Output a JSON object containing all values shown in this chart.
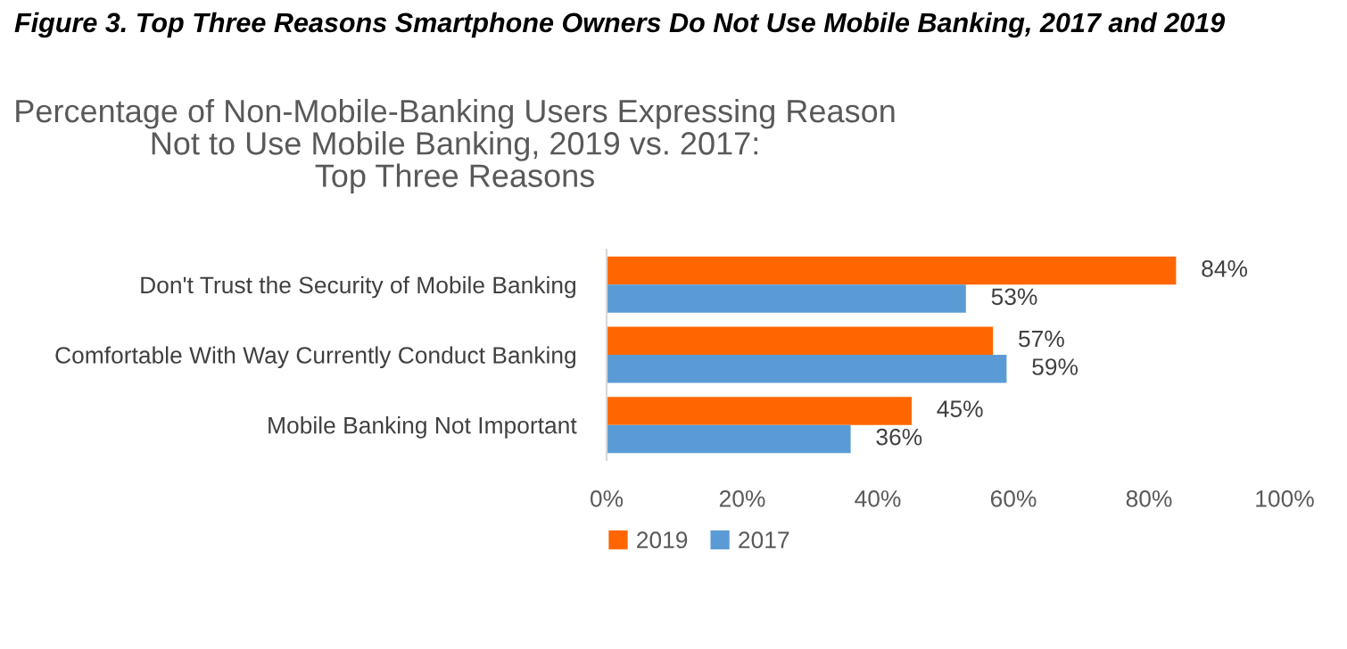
{
  "chart_data": {
    "type": "bar",
    "orientation": "horizontal",
    "title": "Figure 3. Top Three Reasons Smartphone Owners Do Not Use Mobile Banking, 2017 and 2019",
    "subtitle": "Percentage of Non-Mobile-Banking Users Expressing Reason\nNot to Use Mobile Banking, 2019 vs. 2017:\nTop Three Reasons",
    "categories": [
      "Don't Trust the Security of Mobile Banking",
      "Comfortable With Way Currently Conduct Banking",
      "Mobile Banking Not Important"
    ],
    "series": [
      {
        "name": "2019",
        "color": "#ff6600",
        "values": [
          84,
          57,
          45
        ],
        "value_labels": [
          "84%",
          "57%",
          "45%"
        ]
      },
      {
        "name": "2017",
        "color": "#5b9bd5",
        "values": [
          53,
          59,
          36
        ],
        "value_labels": [
          "53%",
          "59%",
          "36%"
        ]
      }
    ],
    "xlim": [
      0,
      100
    ],
    "xticks": [
      {
        "value": 0,
        "label": "0%"
      },
      {
        "value": 20,
        "label": "20%"
      },
      {
        "value": 40,
        "label": "40%"
      },
      {
        "value": 60,
        "label": "60%"
      },
      {
        "value": 80,
        "label": "80%"
      },
      {
        "value": 100,
        "label": "100%"
      }
    ],
    "grid": false,
    "legend": "bottom"
  }
}
